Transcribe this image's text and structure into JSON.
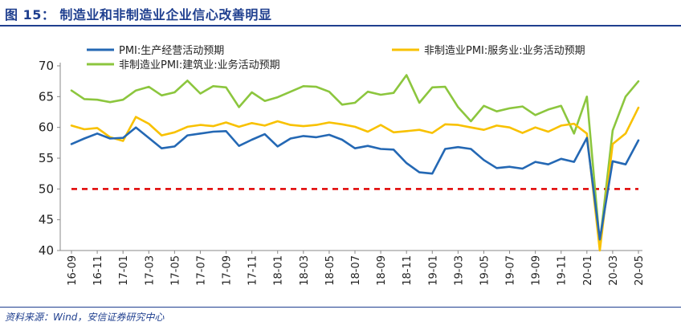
{
  "figure": {
    "title": "图 15：  制造业和非制造业企业信心改善明显",
    "source": "资料来源：Wind，安信证券研究中心"
  },
  "colors": {
    "title": "#1f3f8f",
    "pmi_manufacturing": "#2468b4",
    "pmi_services": "#f8c100",
    "pmi_construction": "#8cc63e",
    "threshold": "#e00000"
  },
  "chart_data": {
    "type": "line",
    "ylim": [
      40,
      70
    ],
    "yticks": [
      40,
      45,
      50,
      55,
      60,
      65,
      70
    ],
    "xlabel": "",
    "ylabel": "",
    "grid": false,
    "legend_position": "top",
    "x_tick_labels": [
      "16-09",
      "16-11",
      "17-01",
      "17-03",
      "17-05",
      "17-07",
      "17-09",
      "17-11",
      "18-01",
      "18-03",
      "18-05",
      "18-07",
      "18-09",
      "18-11",
      "19-01",
      "19-03",
      "19-05",
      "19-07",
      "19-09",
      "19-11",
      "20-01",
      "20-03",
      "20-05"
    ],
    "x": [
      "16-09",
      "16-10",
      "16-11",
      "16-12",
      "17-01",
      "17-02",
      "17-03",
      "17-04",
      "17-05",
      "17-06",
      "17-07",
      "17-08",
      "17-09",
      "17-10",
      "17-11",
      "17-12",
      "18-01",
      "18-02",
      "18-03",
      "18-04",
      "18-05",
      "18-06",
      "18-07",
      "18-08",
      "18-09",
      "18-10",
      "18-11",
      "18-12",
      "19-01",
      "19-02",
      "19-03",
      "19-04",
      "19-05",
      "19-06",
      "19-07",
      "19-08",
      "19-09",
      "19-10",
      "19-11",
      "19-12",
      "20-01",
      "20-02",
      "20-03",
      "20-04",
      "20-05"
    ],
    "series": [
      {
        "name": "PMI:生产经营活动预期",
        "color": "#2468b4",
        "values": [
          57.3,
          58.2,
          59.0,
          58.2,
          58.3,
          60.0,
          58.3,
          56.6,
          56.9,
          58.7,
          59.0,
          59.3,
          59.4,
          57.0,
          58.0,
          58.9,
          56.9,
          58.2,
          58.6,
          58.4,
          58.8,
          58.0,
          56.6,
          57.0,
          56.5,
          56.4,
          54.2,
          52.7,
          52.5,
          56.5,
          56.8,
          56.5,
          54.7,
          53.4,
          53.6,
          53.3,
          54.4,
          54.0,
          54.9,
          54.4,
          58.3,
          41.8,
          54.5,
          54.0,
          57.9
        ]
      },
      {
        "name": "非制造业PMI:服务业:业务活动预期",
        "color": "#f8c100",
        "values": [
          60.3,
          59.7,
          59.9,
          58.4,
          57.8,
          61.7,
          60.6,
          58.7,
          59.2,
          60.1,
          60.4,
          60.2,
          60.8,
          60.1,
          60.7,
          60.3,
          61.0,
          60.4,
          60.2,
          60.4,
          60.8,
          60.5,
          60.1,
          59.3,
          60.4,
          59.2,
          59.4,
          59.6,
          59.1,
          60.5,
          60.4,
          60.0,
          59.6,
          60.3,
          60.0,
          59.1,
          60.0,
          59.3,
          60.3,
          60.6,
          59.0,
          40.0,
          57.3,
          59.0,
          63.2
        ]
      },
      {
        "name": "非制造业PMI:建筑业:业务活动预期",
        "color": "#8cc63e",
        "values": [
          66.0,
          64.6,
          64.5,
          64.1,
          64.5,
          66.0,
          66.6,
          65.2,
          65.7,
          67.6,
          65.5,
          66.7,
          66.5,
          63.3,
          65.7,
          64.3,
          64.9,
          65.8,
          66.7,
          66.6,
          65.8,
          63.7,
          64.0,
          65.8,
          65.3,
          65.6,
          68.5,
          64.0,
          66.5,
          66.6,
          63.3,
          61.0,
          63.5,
          62.6,
          63.1,
          63.4,
          62.0,
          62.9,
          63.5,
          59.0,
          65.0,
          41.2,
          59.5,
          65.0,
          67.5
        ]
      }
    ],
    "threshold": {
      "value": 50,
      "style": "dashed",
      "color": "#e00000"
    }
  }
}
